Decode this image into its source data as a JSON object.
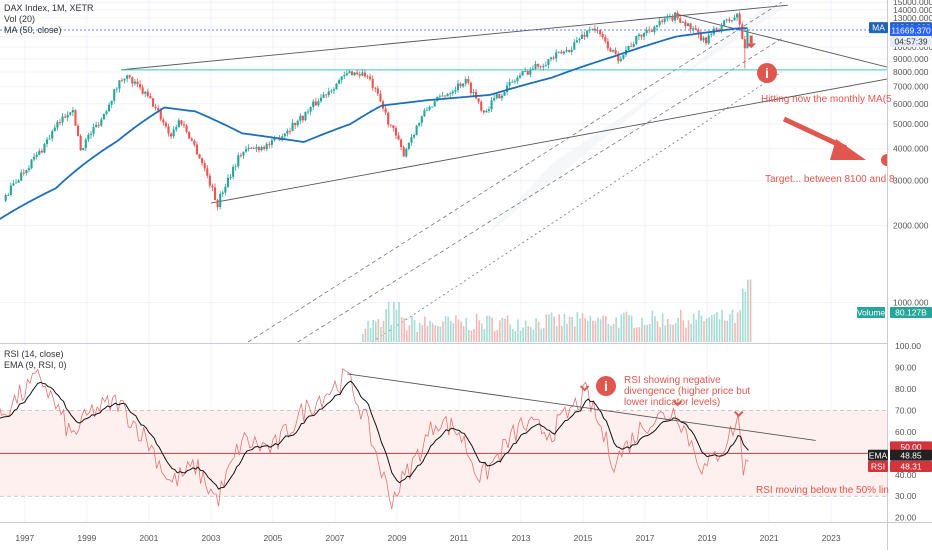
{
  "legend": {
    "title": "DAX Index, 1M, XETR",
    "vol": "Vol (20)",
    "ma": "MA (50, close)",
    "rsi": "RSI (14, close)",
    "ema": "EMA (9, RSI, 0)"
  },
  "annotations": {
    "ma_note": "Hitting now the monthly MA(5",
    "target_note": "Target... between 8100 and 8",
    "rsi_div_1": "RSI showing negative",
    "rsi_div_2": "divengence (higher price but",
    "rsi_div_3": "lower indicator levels)",
    "rsi_mid": "RSI moving below the 50% lin"
  },
  "badges": {
    "ma_label": "MA",
    "ma_value": "11866.032",
    "price_value": "11669.370",
    "countdown": "04:57:39",
    "volume_label": "Volume",
    "volume_value": "80.127B",
    "rsi50_value": "50.00",
    "ema_label": "EMA",
    "ema_value": "48.85",
    "rsi_label": "RSI",
    "rsi_value": "48.31"
  },
  "colors": {
    "up": "#26a69a",
    "down": "#ef5350",
    "ma": "#1e6fb8",
    "annotation": "#e0574f",
    "support": "#37c5c8",
    "channel": "#555555",
    "rsi": "#e57373"
  },
  "chart_data": {
    "type": "candlestick",
    "price_axis": {
      "ticks": [
        "15000.000",
        "14000.000",
        "13000.000",
        "12000.000",
        "11000.000",
        "10000.000",
        "9000.000",
        "8000.000",
        "7000.000",
        "6000.000",
        "5000.000",
        "4000.000",
        "3000.000",
        "2000.000",
        "1000.000"
      ],
      "range": [
        700,
        15300
      ],
      "scale": "log"
    },
    "rsi_axis": {
      "ticks": [
        "100.00",
        "90.00",
        "80.00",
        "70.00",
        "60.00",
        "50.00",
        "40.00",
        "30.00",
        "20.00"
      ],
      "range": [
        18,
        100
      ],
      "bands": [
        30,
        70
      ],
      "midline": 50
    },
    "time_axis": {
      "ticks": [
        "1997",
        "1999",
        "2001",
        "2003",
        "2005",
        "2007",
        "2009",
        "2011",
        "2013",
        "2015",
        "2017",
        "2019",
        "2021",
        "2023"
      ],
      "range": [
        1996.2,
        2024.8
      ]
    },
    "price_anchors": [
      [
        1996.3,
        2500
      ],
      [
        1997.5,
        3900
      ],
      [
        1998.5,
        5800
      ],
      [
        1998.8,
        4000
      ],
      [
        1999.5,
        5300
      ],
      [
        2000.2,
        7800
      ],
      [
        2001.0,
        6300
      ],
      [
        2001.7,
        4500
      ],
      [
        2002.0,
        5200
      ],
      [
        2003.2,
        2400
      ],
      [
        2004.0,
        3900
      ],
      [
        2005.0,
        4200
      ],
      [
        2006.0,
        5400
      ],
      [
        2007.5,
        8000
      ],
      [
        2008.0,
        7800
      ],
      [
        2008.7,
        5200
      ],
      [
        2009.2,
        3800
      ],
      [
        2010.0,
        5800
      ],
      [
        2011.2,
        7400
      ],
      [
        2011.8,
        5600
      ],
      [
        2013.0,
        7800
      ],
      [
        2014.5,
        9700
      ],
      [
        2015.3,
        12000
      ],
      [
        2016.1,
        9000
      ],
      [
        2017.0,
        11500
      ],
      [
        2018.0,
        13300
      ],
      [
        2018.9,
        10500
      ],
      [
        2019.5,
        12300
      ],
      [
        2020.0,
        13300
      ],
      [
        2020.2,
        9500
      ],
      [
        2020.33,
        11669
      ]
    ],
    "ma50_anchors": [
      [
        1996.0,
        2050
      ],
      [
        1998.0,
        2800
      ],
      [
        2000.0,
        4300
      ],
      [
        2001.5,
        5800
      ],
      [
        2002.5,
        5600
      ],
      [
        2004.0,
        4600
      ],
      [
        2006.0,
        4250
      ],
      [
        2007.5,
        5000
      ],
      [
        2008.5,
        5900
      ],
      [
        2010.0,
        6200
      ],
      [
        2012.0,
        6500
      ],
      [
        2014.0,
        7600
      ],
      [
        2016.0,
        9200
      ],
      [
        2018.0,
        11000
      ],
      [
        2020.0,
        11850
      ],
      [
        2020.33,
        11866
      ]
    ],
    "rsi_anchors": [
      [
        1996.0,
        65
      ],
      [
        1997.5,
        86
      ],
      [
        1998.5,
        58
      ],
      [
        1999.2,
        70
      ],
      [
        2000.0,
        74
      ],
      [
        2001.0,
        55
      ],
      [
        2001.7,
        36
      ],
      [
        2002.5,
        44
      ],
      [
        2003.2,
        28
      ],
      [
        2004.0,
        56
      ],
      [
        2005.0,
        52
      ],
      [
        2006.0,
        70
      ],
      [
        2007.4,
        86
      ],
      [
        2008.0,
        65
      ],
      [
        2008.8,
        28
      ],
      [
        2009.5,
        45
      ],
      [
        2010.3,
        66
      ],
      [
        2011.0,
        60
      ],
      [
        2011.7,
        38
      ],
      [
        2013.0,
        63
      ],
      [
        2014.0,
        60
      ],
      [
        2015.1,
        78
      ],
      [
        2016.0,
        46
      ],
      [
        2017.0,
        64
      ],
      [
        2018.0,
        70
      ],
      [
        2018.9,
        42
      ],
      [
        2019.6,
        55
      ],
      [
        2020.0,
        66
      ],
      [
        2020.2,
        40
      ],
      [
        2020.33,
        48.31
      ]
    ],
    "series": [
      {
        "name": "MA",
        "last": 11866.032
      },
      {
        "name": "RSI",
        "last": 48.31
      },
      {
        "name": "EMA",
        "last": 48.85
      }
    ],
    "levels": {
      "support": 8150,
      "last_price": 11669.37
    }
  }
}
